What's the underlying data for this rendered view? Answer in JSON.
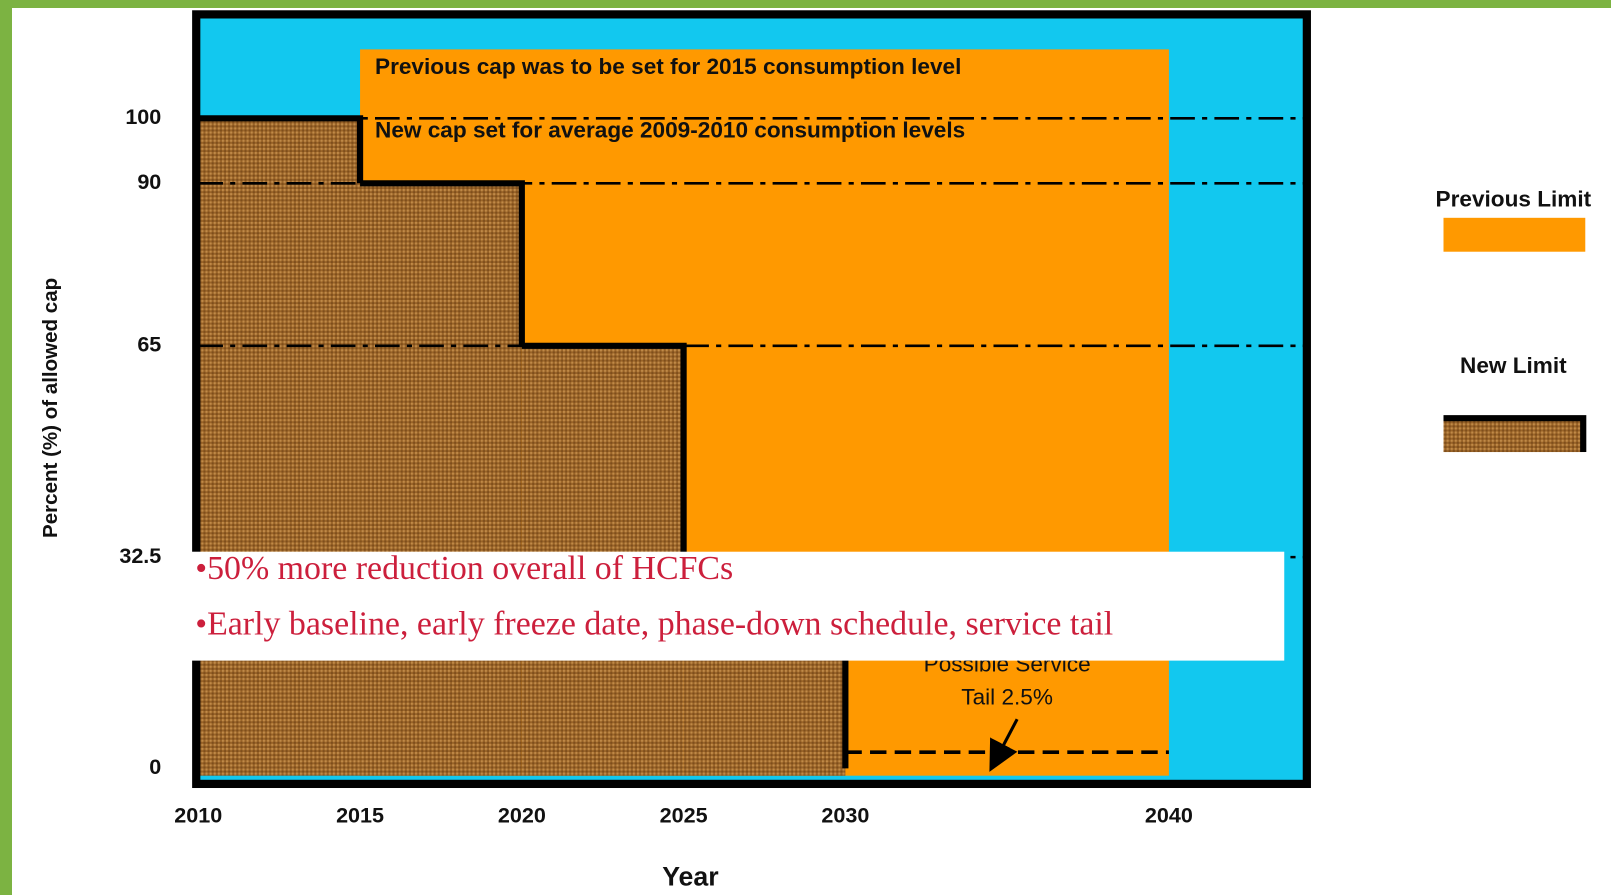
{
  "chart_data": {
    "type": "step",
    "x_label": "Year",
    "y_label": "Percent (%) of allowed cap",
    "xlim": [
      2010,
      2044.2
    ],
    "ylim": [
      -2.7,
      116.3
    ],
    "xticks": [
      2010,
      2015,
      2020,
      2025,
      2030,
      2040
    ],
    "yticks": [
      0,
      32.5,
      65,
      90,
      100
    ],
    "grid": true,
    "background_color": "#12c8ef",
    "legend_position": "right",
    "series": [
      {
        "name": "Previous Limit",
        "color": "#ff9900",
        "x": [
          2015
        ],
        "x_end": [
          2040
        ],
        "values": [
          110.6
        ]
      },
      {
        "name": "New Limit",
        "color": "#9a6428",
        "x": [
          2010,
          2015,
          2020,
          2025
        ],
        "x_end": [
          2015,
          2020,
          2025,
          2030
        ],
        "values": [
          100,
          90,
          65,
          32.5
        ]
      }
    ],
    "service_tail": {
      "value": 2.5,
      "x": [
        2030,
        2040
      ],
      "label": [
        "Possible Service",
        "Tail 2.5%"
      ]
    },
    "annotations": [
      "Previous cap was to be set for 2015 consumption level",
      "New cap set for average 2009-2010 consumption levels"
    ],
    "bullets": [
      "•50% more reduction overall of HCFCs",
      "•Early baseline, early freeze date, phase-down schedule, service tail"
    ]
  }
}
